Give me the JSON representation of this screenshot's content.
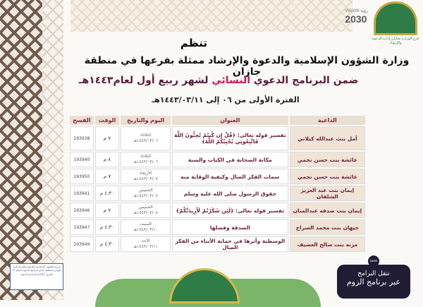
{
  "header": {
    "logo_caption": "فرع الوزارة بجازان إدارة الدعوة والإرشاد",
    "vision": "2030",
    "vision_label": "VISION رؤية",
    "line1": "تنظم",
    "line2": "وزارة الشؤون الإسلامية والدعوة والإرشاد ممثلة بفرعها في منطقة جازان",
    "line3_a": "ضمن البرنامج الدعوي ",
    "line3_hl": "النسائي",
    "line3_b": " لشهر ربيع أول لعام١٤٤٣هـ",
    "period": "الفترة الأولى من ٠٦ إلى ١٤٤٣/٠٣/١١هـ"
  },
  "table": {
    "headers": [
      "الداعية",
      "العنوان",
      "اليوم والتاريخ",
      "الوقت",
      "الفسح"
    ],
    "rows": [
      {
        "name": "أمل بنت عبدالله كيلاني",
        "topic": "تفسير قوله تعالى: ﴿قُلْ إِن كُنتُمْ تُحِبُّونَ اللَّهَ فَاتَّبِعُونِي يُحْبِبْكُمُ اللَّهُ﴾",
        "day": "الثلاثاء",
        "date": "١٤٤٣/٠٣/٠٦هـ",
        "time": "٧ م",
        "code": "193938"
      },
      {
        "name": "عائشة بنت حسن نجمي",
        "topic": "مكانة الصحابة في الكتاب والسنة",
        "day": "الثلاثاء",
        "date": "١٤٤٣/٠٣/٠٦هـ",
        "time": "٨ م",
        "code": "193940"
      },
      {
        "name": "عائشة بنت حسن نجمي",
        "topic": "سمات الفكر الضال وكيفية الوقاية منه",
        "day": "الأربعاء",
        "date": "١٤٤٣/٠٣/٠٧هـ",
        "time": "٧ م",
        "code": "193950"
      },
      {
        "name": "إيمان بنت عبد العزيز الشلفان",
        "topic": "حقوق الرسول صلى الله عليه وسلم",
        "day": "الخميس",
        "date": "١٤٤٣/٠٣/٠٨هـ",
        "time": "٤:٣٠ م",
        "code": "193941"
      },
      {
        "name": "إيمان بنت صدقه عبدالمنان",
        "topic": "تفسير قوله تعالى: ﴿لَئِن شَكَرْتُمْ لَأَزِيدَنَّكُمْ﴾",
        "day": "الخميس",
        "date": "١٤٤٣/٠٣/٠٨هـ",
        "time": "٧ م",
        "code": "193946"
      },
      {
        "name": "جيهان بنت محمد السراج",
        "topic": "الصدقة وفضلها",
        "day": "السبت",
        "date": "١٤٤٣/٠٣/١٠هـ",
        "time": "٤:٣٠ م",
        "code": "193947"
      },
      {
        "name": "مزنه بنت صالح العضيف",
        "topic": "الوسطية وأثرها في حماية الأبناء من الفكر الضال",
        "day": "الأحد",
        "date": "١٤٤٣/٠٣/١١هـ",
        "time": "٤:٣٠ م",
        "code": "193949"
      }
    ]
  },
  "footer": {
    "zoom_icon": "zoom",
    "zoom_line1": "تنقل البرامج",
    "zoom_line2": "عبر برنامج الزوم",
    "stamp": "وزارة الشؤون الإسلامية والدعوة والإرشاد فرع الوزارة بمنطقة جازان البرامج الدعوية الرقم ٢٢ التاريخ ١٤٤٣/٣/١هـ إدارة الدعوة"
  }
}
